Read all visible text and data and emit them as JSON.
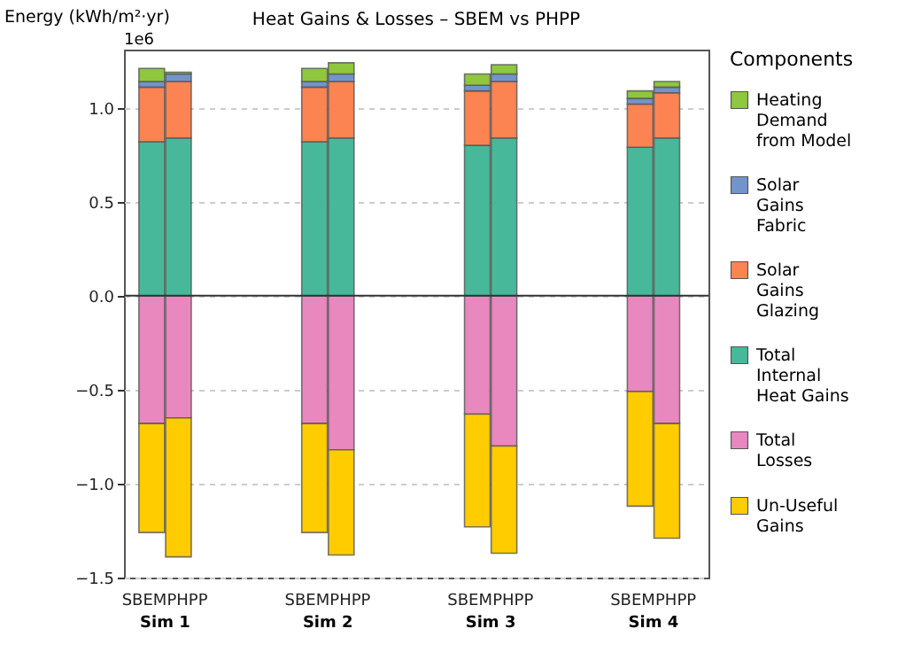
{
  "chart_data": {
    "type": "bar",
    "stacked": true,
    "title": "Heat Gains & Losses – SBEM vs PHPP",
    "ylabel": "Energy (kWh/m²·yr)",
    "legend_title": "Components",
    "legend": "right",
    "grid": "y",
    "categories": [
      "SBEM",
      "PHPP",
      "SBEM",
      "PHPP",
      "SBEM",
      "PHPP",
      "SBEM",
      "PHPP"
    ],
    "series": [
      {
        "name": "Total Internal Heat Gains",
        "color": "#47b99a",
        "values": [
          0.82,
          0.84,
          0.82,
          0.84,
          0.8,
          0.84,
          0.79,
          0.84
        ]
      },
      {
        "name": "Solar Gains Glazing",
        "color": "#fc8452",
        "values": [
          0.29,
          0.3,
          0.29,
          0.3,
          0.29,
          0.3,
          0.23,
          0.24
        ]
      },
      {
        "name": "Solar Gains Fabric",
        "color": "#7394cb",
        "values": [
          0.03,
          0.04,
          0.03,
          0.04,
          0.03,
          0.04,
          0.03,
          0.03
        ]
      },
      {
        "name": "Heating Demand from Model",
        "color": "#8fc73e",
        "values": [
          0.07,
          0.01,
          0.07,
          0.06,
          0.06,
          0.05,
          0.04,
          0.03
        ]
      },
      {
        "name": "Total Losses",
        "color": "#e987bf",
        "values": [
          -0.68,
          -0.65,
          -0.68,
          -0.82,
          -0.63,
          -0.8,
          -0.51,
          -0.68
        ]
      },
      {
        "name": "Un-Useful Gains",
        "color": "#ffcc00",
        "values": [
          -0.58,
          -0.74,
          -0.58,
          -0.56,
          -0.6,
          -0.57,
          -0.61,
          -0.61
        ]
      }
    ],
    "ylim": [
      -1.5,
      1.31
    ],
    "yticks": [
      -1.5,
      {
        "value": -1,
        "label": "−1.0"
      },
      -0.5,
      {
        "value": 0,
        "label": "0.0"
      },
      0.5,
      {
        "value": 1,
        "label": "1.0"
      }
    ],
    "ref_lines": [
      {
        "axis": "y",
        "value": 0,
        "color": "#333333"
      }
    ],
    "annotations": [
      "1e6",
      "Sim 1",
      "Sim 2",
      "Sim 3",
      "Sim 4"
    ]
  }
}
